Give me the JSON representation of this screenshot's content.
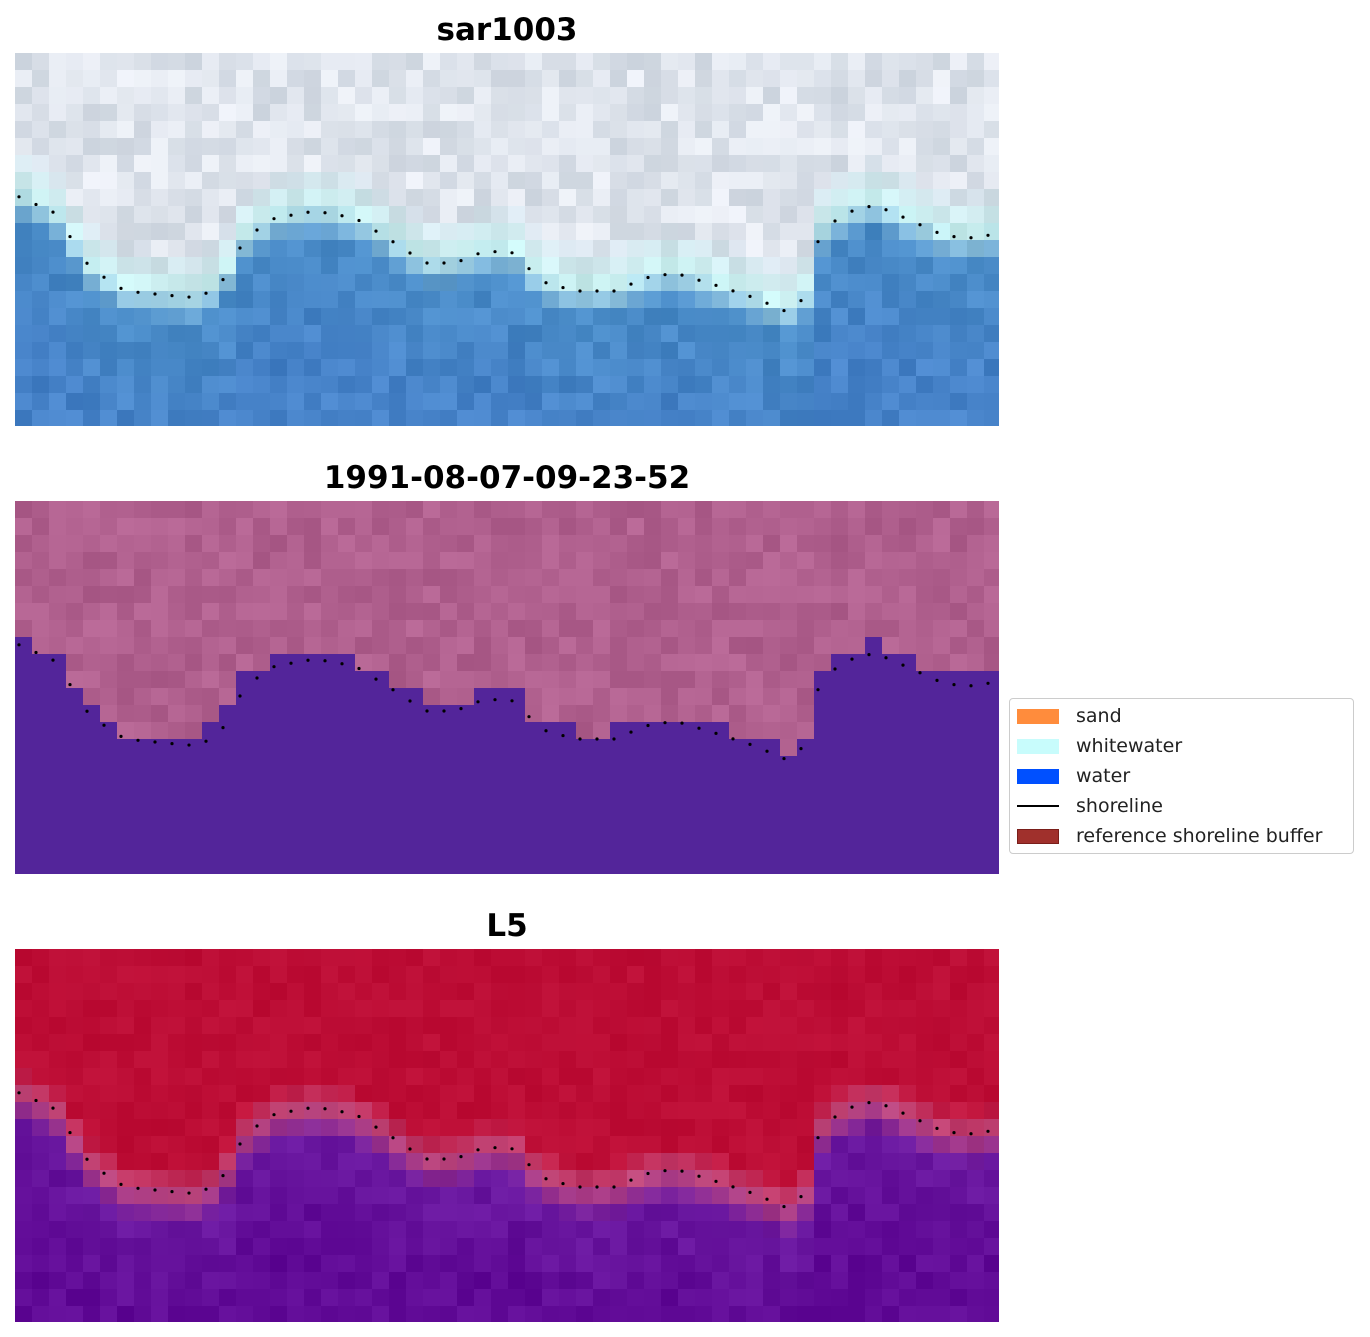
{
  "panels": [
    {
      "title": "sar1003",
      "style": "rgb"
    },
    {
      "title": "1991-08-07-09-23-52",
      "style": "classified"
    },
    {
      "title": "L5",
      "style": "probability"
    }
  ],
  "legend": {
    "items": [
      {
        "label": "sand",
        "color": "#ff8c3c",
        "kind": "patch"
      },
      {
        "label": "whitewater",
        "color": "#c8fcfc",
        "kind": "patch"
      },
      {
        "label": "water",
        "color": "#0050ff",
        "kind": "patch"
      },
      {
        "label": "shoreline",
        "color": "#000000",
        "kind": "line"
      },
      {
        "label": "reference shoreline buffer",
        "color": "#a0302c",
        "kind": "patch"
      }
    ]
  },
  "colors": {
    "rgb_water": "#4a8cc8",
    "rgb_whitewater": "#c8f0f0",
    "rgb_land": "#d8e0ea",
    "class_land": "#b0608e",
    "class_water": "#53259a",
    "prob_land": "#c01038",
    "prob_edge": "#c0487a",
    "prob_water": "#6a18a0",
    "shoreline_dots": "#000000"
  }
}
